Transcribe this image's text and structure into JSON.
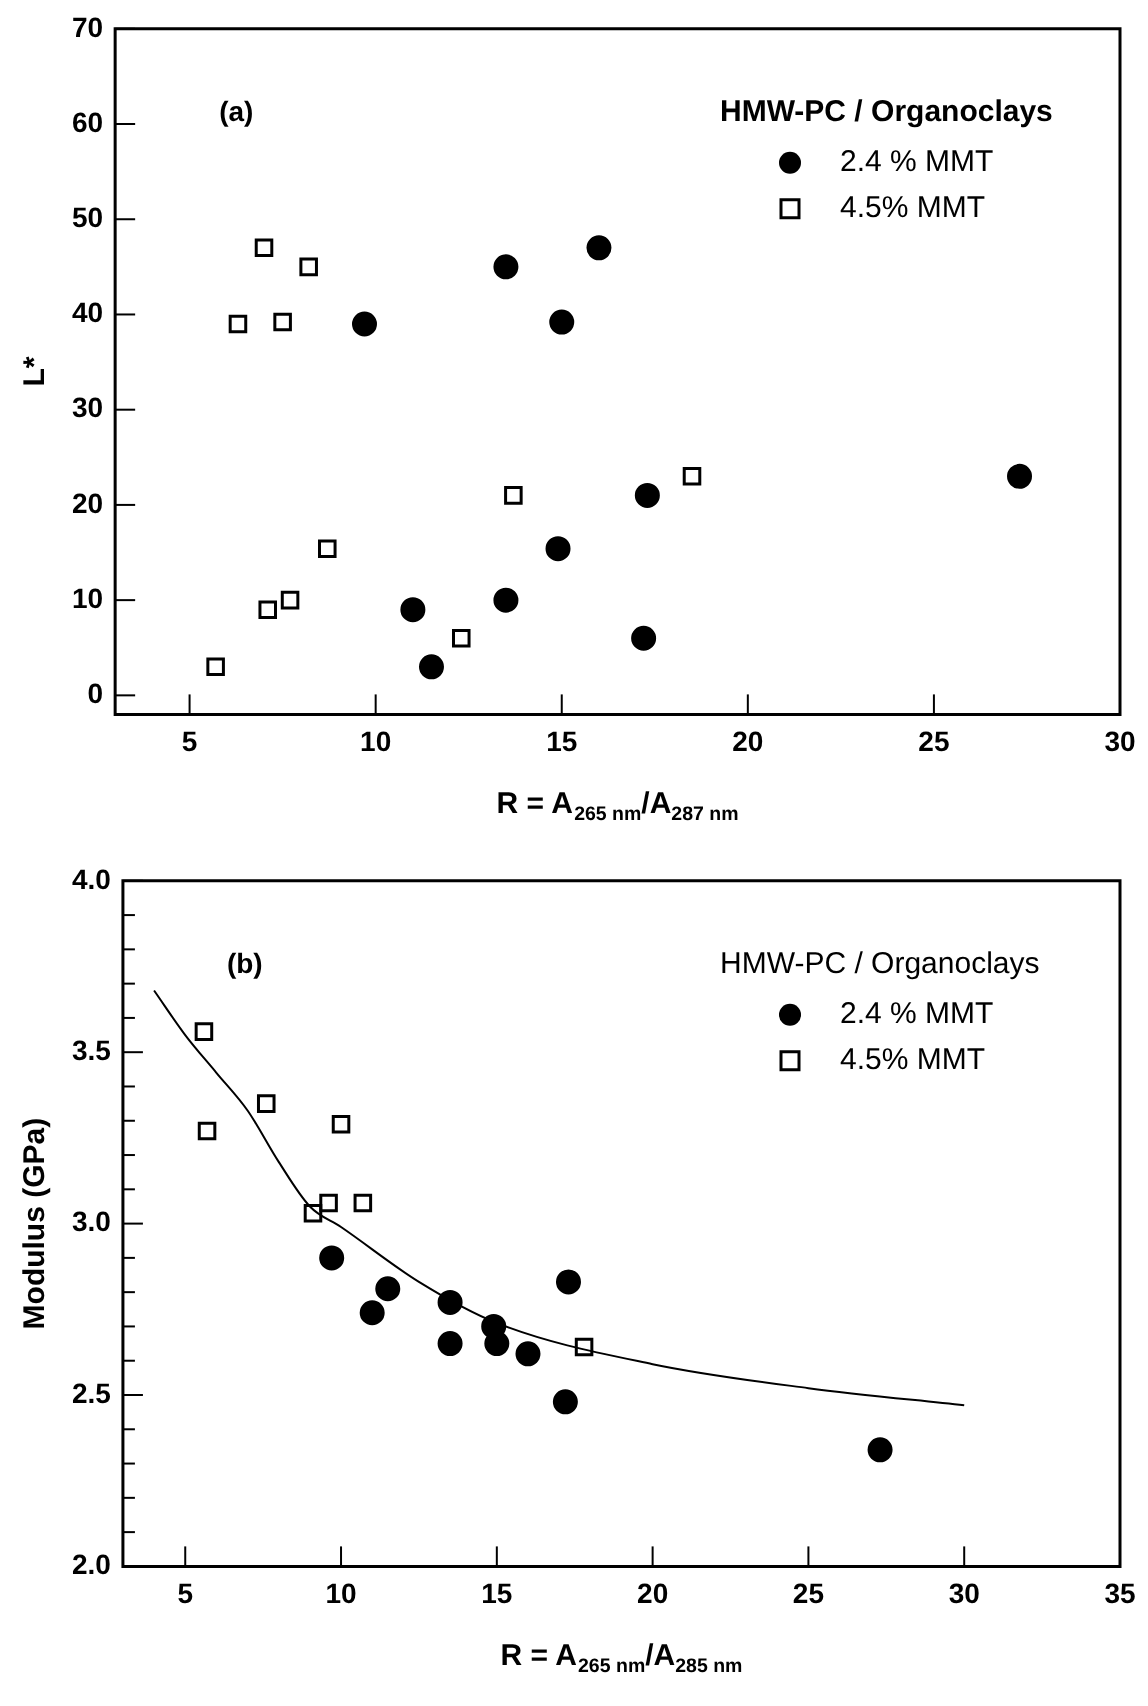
{
  "chart_data": [
    {
      "type": "scatter",
      "xlabel": "R = A$_{265 nm}$/A$_{287 nm}$",
      "ylabel": "L*",
      "legend_title": "HMW-PC / Organoclays",
      "legend": "top right",
      "annotations": [
        "(a)"
      ],
      "xlim": [
        3,
        30
      ],
      "xticks": [
        5,
        10,
        15,
        20,
        25,
        30
      ],
      "ylim": [
        -2,
        70
      ],
      "yticks": [
        0,
        10,
        20,
        30,
        40,
        50,
        60,
        70
      ],
      "grid": false,
      "series": [
        {
          "name": "2.4 % MMT",
          "color": "#000000",
          "marker": "circle",
          "x": [
            9.7,
            13.5,
            15,
            16,
            11,
            11.5,
            13.5,
            14.9,
            17.3,
            17.2,
            27.3
          ],
          "values": [
            39,
            45,
            39.2,
            47,
            9,
            3,
            10,
            15.4,
            21,
            6,
            23
          ]
        },
        {
          "name": "4.5% MMT",
          "color": "#000000",
          "marker": "square",
          "x": [
            5.7,
            6.3,
            7,
            7.1,
            7.5,
            7.7,
            8.2,
            8.7,
            12.3,
            13.7,
            18.5
          ],
          "values": [
            3,
            39,
            47,
            9,
            39.2,
            10,
            45,
            15.4,
            6,
            21,
            23
          ]
        }
      ]
    },
    {
      "type": "scatter",
      "xlabel": "R = A$_{265 nm}$/A$_{285 nm}$",
      "ylabel": "Modulus (GPa)",
      "legend_title": "HMW-PC / Organoclays",
      "legend": "top right",
      "annotations": [
        "(b)"
      ],
      "xlim": [
        3,
        35
      ],
      "xticks": [
        5,
        10,
        15,
        20,
        25,
        30,
        35
      ],
      "ylim": [
        2,
        4
      ],
      "yticks": [
        {
          "value": 2,
          "label": "2.0"
        },
        {
          "value": 2.1,
          "label": null
        },
        {
          "value": 2.2,
          "label": null
        },
        {
          "value": 2.3,
          "label": null
        },
        {
          "value": 2.4,
          "label": null
        },
        {
          "value": 2.5,
          "label": "2.5"
        },
        {
          "value": 2.6,
          "label": null
        },
        {
          "value": 2.7,
          "label": null
        },
        {
          "value": 2.8,
          "label": null
        },
        {
          "value": 2.9,
          "label": null
        },
        {
          "value": 3.0,
          "label": "3.0"
        },
        {
          "value": 3.1,
          "label": null
        },
        {
          "value": 3.2,
          "label": null
        },
        {
          "value": 3.3,
          "label": null
        },
        {
          "value": 3.4,
          "label": null
        },
        {
          "value": 3.5,
          "label": "3.5"
        },
        {
          "value": 3.6,
          "label": null
        },
        {
          "value": 3.7,
          "label": null
        },
        {
          "value": 3.8,
          "label": null
        },
        {
          "value": 3.9,
          "label": null
        },
        {
          "value": 4.0,
          "label": "4.0"
        }
      ],
      "grid": false,
      "series": [
        {
          "name": "2.4 % MMT",
          "color": "#000000",
          "marker": "circle",
          "x": [
            9.7,
            11,
            11.5,
            13.5,
            13.5,
            14.9,
            15,
            16,
            17.3,
            17.2,
            27.3
          ],
          "values": [
            2.9,
            2.74,
            2.81,
            2.77,
            2.65,
            2.7,
            2.65,
            2.62,
            2.83,
            2.48,
            2.34
          ]
        },
        {
          "name": "4.5% MMT",
          "color": "#000000",
          "marker": "square",
          "x": [
            5.6,
            5.7,
            7.6,
            9.1,
            9.6,
            10,
            10.7,
            17.8
          ],
          "values": [
            3.56,
            3.27,
            3.35,
            3.03,
            3.06,
            3.29,
            3.06,
            2.64
          ]
        },
        {
          "type": "line",
          "color": "#000000",
          "marker": "none",
          "line_style": "solid",
          "x": [
            4,
            5,
            6,
            7,
            8,
            9,
            10,
            12.5,
            15,
            20,
            25,
            30
          ],
          "values": [
            3.68,
            3.55,
            3.44,
            3.33,
            3.18,
            3.05,
            2.99,
            2.83,
            2.71,
            2.59,
            2.52,
            2.47
          ]
        }
      ]
    }
  ]
}
